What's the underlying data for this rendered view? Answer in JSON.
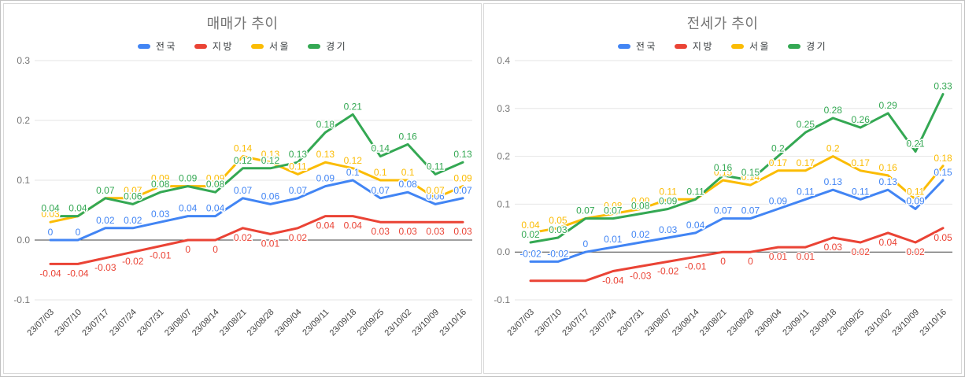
{
  "colors": {
    "national": "#4285f4",
    "regional": "#ea4335",
    "seoul": "#fbbc04",
    "gyeonggi": "#34a853",
    "grid": "#e6e6e6",
    "zero_line": "#424242",
    "tick_text": "#757575",
    "axis_text": "#444444",
    "title_text": "#757575"
  },
  "chart_data": [
    {
      "type": "line",
      "title": "매매가 추이",
      "legend_position": "top",
      "grid": true,
      "y_min": -0.1,
      "y_max": 0.3,
      "y_ticks": [
        "0.3",
        "0.2",
        "0.1",
        "0.0",
        "-0.1"
      ],
      "categories": [
        "23/07/03",
        "23/07/10",
        "23/07/17",
        "23/07/24",
        "23/07/31",
        "23/08/07",
        "23/08/14",
        "23/08/21",
        "23/08/28",
        "23/09/04",
        "23/09/11",
        "23/09/18",
        "23/09/25",
        "23/10/02",
        "23/10/09",
        "23/10/16"
      ],
      "series": [
        {
          "name": "전국",
          "color": "#4285f4",
          "label_side": "above",
          "values": [
            0,
            0,
            0.02,
            0.02,
            0.03,
            0.04,
            0.04,
            0.07,
            0.06,
            0.07,
            0.09,
            0.1,
            0.07,
            0.08,
            0.06,
            0.07
          ],
          "labels": [
            "0",
            "0",
            "0.02",
            "0.02",
            "0.03",
            "0.04",
            "0.04",
            "0.07",
            "0.06",
            "0.07",
            "0.09",
            "0.1",
            "0.07",
            "0.08",
            "0.06",
            "0.07"
          ]
        },
        {
          "name": "지방",
          "color": "#ea4335",
          "label_side": "below",
          "values": [
            -0.04,
            -0.04,
            -0.03,
            -0.02,
            -0.01,
            0,
            0,
            0.02,
            0.01,
            0.02,
            0.04,
            0.04,
            0.03,
            0.03,
            0.03,
            0.03
          ],
          "labels": [
            "-0.04",
            "-0.04",
            "-0.03",
            "-0.02",
            "-0.01",
            "0",
            "0",
            "0.02",
            "0.01",
            "0.02",
            "0.04",
            "0.04",
            "0.03",
            "0.03",
            "0.03",
            "0.03"
          ]
        },
        {
          "name": "서울",
          "color": "#fbbc04",
          "label_side": "above",
          "values": [
            0.03,
            0.04,
            0.07,
            0.07,
            0.09,
            0.09,
            0.09,
            0.14,
            0.13,
            0.11,
            0.13,
            0.12,
            0.1,
            0.1,
            0.07,
            0.09
          ],
          "labels": [
            "0.03",
            "0.04",
            "0.07",
            "0.07",
            "0.09",
            "0.09",
            "0.09",
            "0.14",
            "0.13",
            "0.11",
            "0.13",
            "0.12",
            "0.1",
            "0.1",
            "0.07",
            "0.09"
          ]
        },
        {
          "name": "경기",
          "color": "#34a853",
          "label_side": "above",
          "values": [
            0.04,
            0.04,
            0.07,
            0.06,
            0.08,
            0.09,
            0.08,
            0.12,
            0.12,
            0.13,
            0.18,
            0.21,
            0.14,
            0.16,
            0.11,
            0.13
          ],
          "labels": [
            "0.04",
            "0.04",
            "0.07",
            "0.06",
            "0.08",
            "0.09",
            "0.08",
            "0.12",
            "0.12",
            "0.13",
            "0.18",
            "0.21",
            "0.14",
            "0.16",
            "0.11",
            "0.13"
          ]
        }
      ]
    },
    {
      "type": "line",
      "title": "전세가 추이",
      "legend_position": "top",
      "grid": true,
      "y_min": -0.1,
      "y_max": 0.4,
      "y_ticks": [
        "0.4",
        "0.3",
        "0.2",
        "0.1",
        "0.0",
        "-0.1"
      ],
      "categories": [
        "23/07/03",
        "23/07/10",
        "23/07/17",
        "23/07/24",
        "23/07/31",
        "23/08/07",
        "23/08/14",
        "23/08/21",
        "23/08/28",
        "23/09/04",
        "23/09/11",
        "23/09/18",
        "23/09/25",
        "23/10/02",
        "23/10/09",
        "23/10/16"
      ],
      "series": [
        {
          "name": "전국",
          "color": "#4285f4",
          "label_side": "above",
          "values": [
            -0.02,
            -0.02,
            0,
            0.01,
            0.02,
            0.03,
            0.04,
            0.07,
            0.07,
            0.09,
            0.11,
            0.13,
            0.11,
            0.13,
            0.09,
            0.15
          ],
          "labels": [
            "-0.02",
            "-0.02",
            "0",
            "0.01",
            "0.02",
            "0.03",
            "0.04",
            "0.07",
            "0.07",
            "0.09",
            "0.11",
            "0.13",
            "0.11",
            "0.13",
            "0.09",
            "0.15"
          ]
        },
        {
          "name": "지방",
          "color": "#ea4335",
          "label_side": "below",
          "values": [
            -0.06,
            -0.06,
            -0.06,
            -0.04,
            -0.03,
            -0.02,
            -0.01,
            0,
            0,
            0.01,
            0.01,
            0.03,
            0.02,
            0.04,
            0.02,
            0.05
          ],
          "labels": [
            "",
            "",
            "",
            "-0.04",
            "-0.03",
            "-0.02",
            "-0.01",
            "0",
            "0",
            "0.01",
            "0.01",
            "0.03",
            "0.02",
            "0.04",
            "0.02",
            "0.05"
          ]
        },
        {
          "name": "서울",
          "color": "#fbbc04",
          "label_side": "above",
          "values": [
            0.04,
            0.05,
            0.07,
            0.08,
            0.09,
            0.11,
            0.11,
            0.15,
            0.14,
            0.17,
            0.17,
            0.2,
            0.17,
            0.16,
            0.11,
            0.18
          ],
          "labels": [
            "0.04",
            "0.05",
            "0.07",
            "0.08",
            "0.09",
            "0.11",
            "0.11",
            "0.15",
            "0.14",
            "0.17",
            "0.17",
            "0.2",
            "0.17",
            "0.16",
            "0.11",
            "0.18"
          ]
        },
        {
          "name": "경기",
          "color": "#34a853",
          "label_side": "above",
          "values": [
            0.02,
            0.03,
            0.07,
            0.07,
            0.08,
            0.09,
            0.11,
            0.16,
            0.15,
            0.2,
            0.25,
            0.28,
            0.26,
            0.29,
            0.21,
            0.33
          ],
          "labels": [
            "0.02",
            "0.03",
            "0.07",
            "0.07",
            "0.08",
            "0.09",
            "0.11",
            "0.16",
            "0.15",
            "0.2",
            "0.25",
            "0.28",
            "0.26",
            "0.29",
            "0.21",
            "0.33"
          ]
        }
      ]
    }
  ]
}
